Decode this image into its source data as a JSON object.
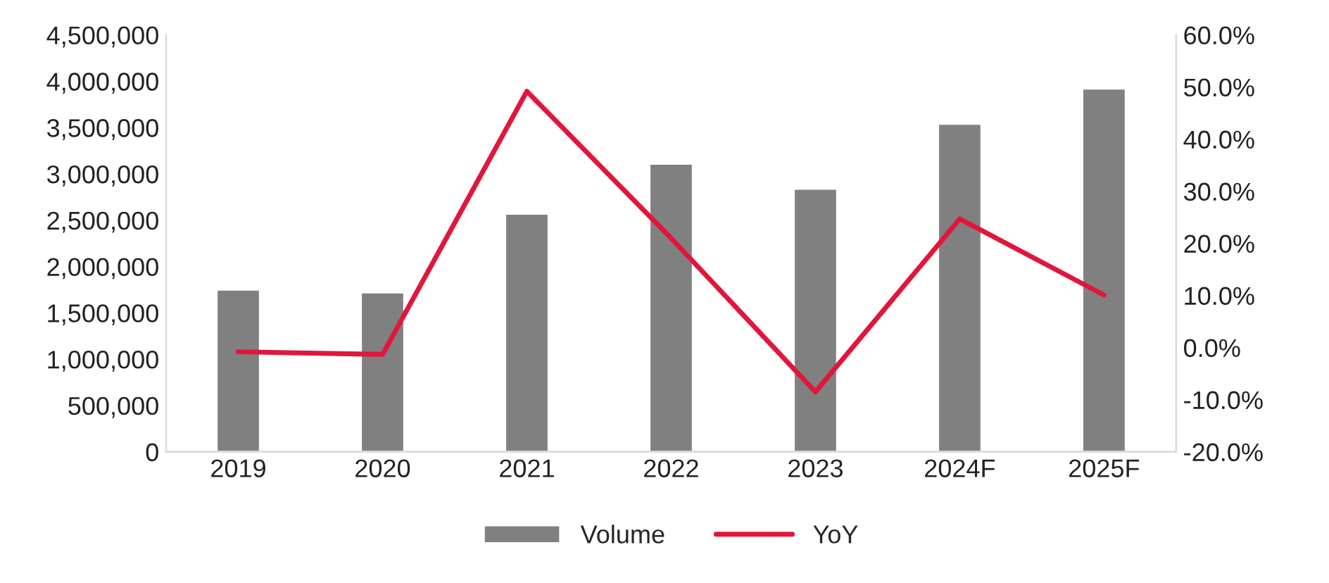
{
  "chart_data": {
    "type": "bar",
    "categories": [
      "2019",
      "2020",
      "2021",
      "2022",
      "2023",
      "2024F",
      "2025F"
    ],
    "series": [
      {
        "name": "Volume",
        "color": "#808080",
        "values": [
          1750000,
          1720000,
          2570000,
          3110000,
          2840000,
          3540000,
          3920000
        ]
      },
      {
        "name": "YoY",
        "type": "line",
        "axis": "y2",
        "color": "#e0173a",
        "values": [
          -0.8,
          -1.3,
          49.2,
          21.0,
          -8.5,
          24.7,
          10.1
        ]
      }
    ],
    "ylim": [
      0,
      4500000
    ],
    "yticks": [
      {
        "value": 0,
        "label": "0"
      },
      {
        "value": 500000,
        "label": "500,000"
      },
      {
        "value": 1000000,
        "label": "1,000,000"
      },
      {
        "value": 1500000,
        "label": "1,500,000"
      },
      {
        "value": 2000000,
        "label": "2,000,000"
      },
      {
        "value": 2500000,
        "label": "2,500,000"
      },
      {
        "value": 3000000,
        "label": "3,000,000"
      },
      {
        "value": 3500000,
        "label": "3,500,000"
      },
      {
        "value": 4000000,
        "label": "4,000,000"
      },
      {
        "value": 4500000,
        "label": "4,500,000"
      }
    ],
    "y2lim": [
      -20,
      60
    ],
    "y2ticks": [
      {
        "value": -20,
        "label": "-20.0%"
      },
      {
        "value": -10,
        "label": "-10.0%"
      },
      {
        "value": 0,
        "label": "0.0%"
      },
      {
        "value": 10,
        "label": "10.0%"
      },
      {
        "value": 20,
        "label": "20.0%"
      },
      {
        "value": 30,
        "label": "30.0%"
      },
      {
        "value": 40,
        "label": "40.0%"
      },
      {
        "value": 50,
        "label": "50.0%"
      },
      {
        "value": 60,
        "label": "60.0%"
      }
    ],
    "grid": false,
    "legend": "bottom",
    "marker": "none",
    "line_style": "solid"
  }
}
